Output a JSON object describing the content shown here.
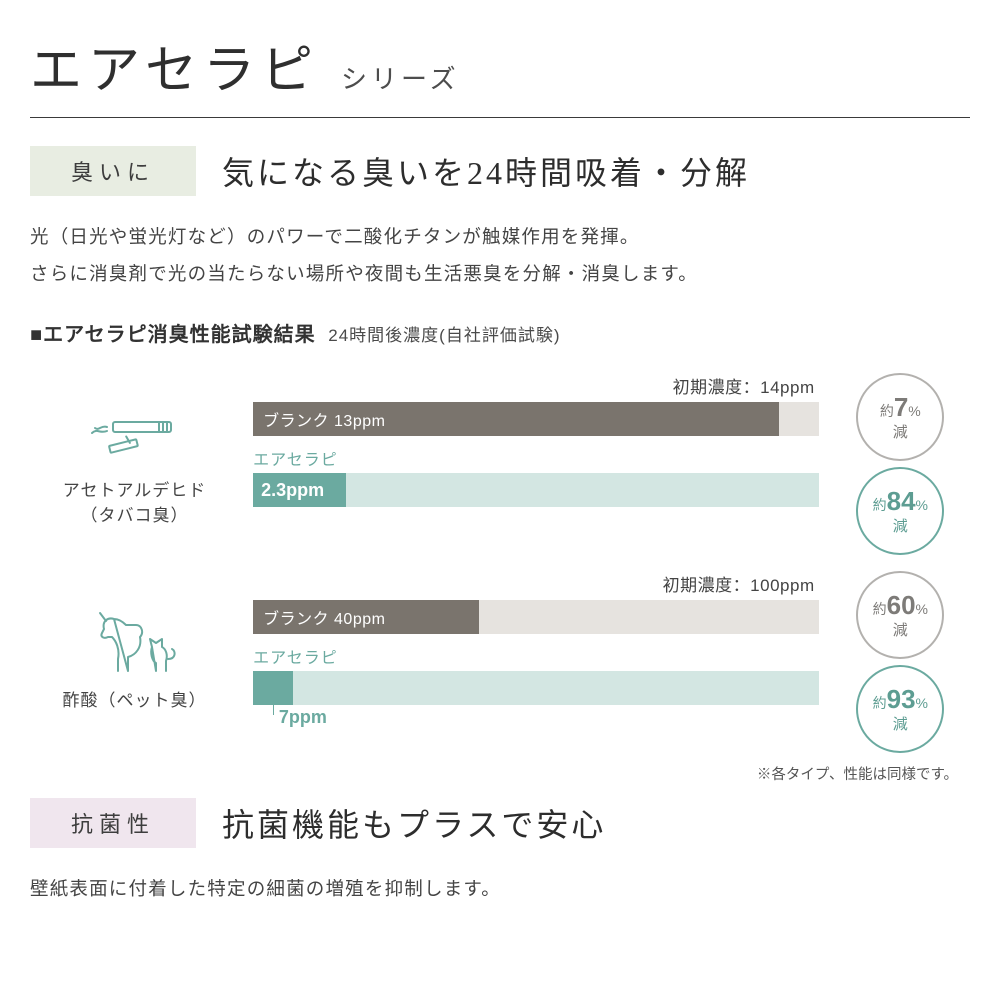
{
  "header": {
    "main_title": "エアセラピ",
    "subtitle": "シリーズ"
  },
  "section_odor": {
    "badge": "臭いに",
    "badge_bg": "#e8ede2",
    "title": "気になる臭いを24時間吸着・分解",
    "description": "光（日光や蛍光灯など）のパワーで二酸化チタンが触媒作用を発揮。\nさらに消臭剤で光の当たらない場所や夜間も生活悪臭を分解・消臭します。",
    "chart_title": "■エアセラピ消臭性能試験結果",
    "chart_subtitle": "24時間後濃度(自社評価試験)",
    "product_label": "エアセラピ",
    "blank_label_prefix": "ブランク",
    "bar_colors": {
      "blank_fill": "#7a746d",
      "blank_bg": "#e0dcd6",
      "product_fill": "#6baaa0",
      "product_arrow_bg": "#d3e6e2"
    },
    "circle_colors": {
      "gray_border": "#b3b1ae",
      "gray_text": "#7d7b78",
      "teal_border": "#6baaa0",
      "teal_text": "#5d9d92"
    },
    "icon_stroke": "#6baaa0",
    "tests": [
      {
        "category": "アセトアルデヒド",
        "category_sub": "（タバコ臭）",
        "icon": "cigarette",
        "initial_label": "初期濃度：14ppm",
        "initial_ppm": 14,
        "blank_ppm": 13,
        "blank_text": "ブランク 13ppm",
        "blank_pct_width": 92.9,
        "blank_reduction_pct": 7,
        "product_ppm": 2.3,
        "product_text": "2.3ppm",
        "product_pct_width": 16.4,
        "product_reduction_pct": 84,
        "value_annotation_inline": true
      },
      {
        "category": "酢酸（ペット臭）",
        "category_sub": "",
        "icon": "pet",
        "initial_label": "初期濃度：100ppm",
        "initial_ppm": 100,
        "blank_ppm": 40,
        "blank_text": "ブランク 40ppm",
        "blank_pct_width": 40,
        "blank_reduction_pct": 60,
        "product_ppm": 7,
        "product_text": "7ppm",
        "product_pct_width": 7,
        "product_reduction_pct": 93,
        "value_annotation_inline": false,
        "value_annotation": "7ppm"
      }
    ],
    "footnote": "※各タイプ、性能は同様です。",
    "reduction_prefix": "約",
    "reduction_suffix": "%",
    "reduction_word": "減"
  },
  "section_antibac": {
    "badge": "抗菌性",
    "badge_bg": "#f0e6ee",
    "title": "抗菌機能もプラスで安心",
    "description": "壁紙表面に付着した特定の細菌の増殖を抑制します。"
  }
}
